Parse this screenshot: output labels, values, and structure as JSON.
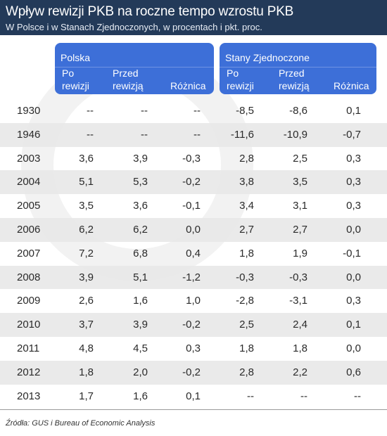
{
  "header": {
    "title": "Wpływ rewizji PKB na roczne tempo wzrostu PKB",
    "subtitle": "W Polsce i w Stanach Zjednoczonych, w procentach i pkt. proc."
  },
  "groups": {
    "poland": "Polska",
    "usa": "Stany Zjednoczone"
  },
  "columns": {
    "pl_after": [
      "Po",
      "rewizji"
    ],
    "pl_before": [
      "Przed",
      "rewizją"
    ],
    "pl_diff": "Różnica",
    "us_after": [
      "Po",
      "rewizji"
    ],
    "us_before": [
      "Przed",
      "rewizją"
    ],
    "us_diff": "Różnica"
  },
  "source": "Źródła: GUS i Bureau of Economic Analysis",
  "colors": {
    "header_bg": "#233a59",
    "group_bg": "#3d6fd8",
    "row_alt": "#e8e8e8"
  },
  "chart_data": {
    "type": "table",
    "title": "Wpływ rewizji PKB na roczne tempo wzrostu PKB",
    "subtitle": "W Polsce i w Stanach Zjednoczonych, w procentach i pkt. proc.",
    "rows": [
      {
        "year": "1930",
        "values": [
          "--",
          "--",
          "--",
          "-8,5",
          "-8,6",
          "0,1"
        ]
      },
      {
        "year": "1946",
        "values": [
          "--",
          "--",
          "--",
          "-11,6",
          "-10,9",
          "-0,7"
        ]
      },
      {
        "year": "2003",
        "values": [
          "3,6",
          "3,9",
          "-0,3",
          "2,8",
          "2,5",
          "0,3"
        ]
      },
      {
        "year": "2004",
        "values": [
          "5,1",
          "5,3",
          "-0,2",
          "3,8",
          "3,5",
          "0,3"
        ]
      },
      {
        "year": "2005",
        "values": [
          "3,5",
          "3,6",
          "-0,1",
          "3,4",
          "3,1",
          "0,3"
        ]
      },
      {
        "year": "2006",
        "values": [
          "6,2",
          "6,2",
          "0,0",
          "2,7",
          "2,7",
          "0,0"
        ]
      },
      {
        "year": "2007",
        "values": [
          "7,2",
          "6,8",
          "0,4",
          "1,8",
          "1,9",
          "-0,1"
        ]
      },
      {
        "year": "2008",
        "values": [
          "3,9",
          "5,1",
          "-1,2",
          "-0,3",
          "-0,3",
          "0,0"
        ]
      },
      {
        "year": "2009",
        "values": [
          "2,6",
          "1,6",
          "1,0",
          "-2,8",
          "-3,1",
          "0,3"
        ]
      },
      {
        "year": "2010",
        "values": [
          "3,7",
          "3,9",
          "-0,2",
          "2,5",
          "2,4",
          "0,1"
        ]
      },
      {
        "year": "2011",
        "values": [
          "4,8",
          "4,5",
          "0,3",
          "1,8",
          "1,8",
          "0,0"
        ]
      },
      {
        "year": "2012",
        "values": [
          "1,8",
          "2,0",
          "-0,2",
          "2,8",
          "2,2",
          "0,6"
        ]
      },
      {
        "year": "2013",
        "values": [
          "1,7",
          "1,6",
          "0,1",
          "--",
          "--",
          "--"
        ]
      }
    ]
  }
}
